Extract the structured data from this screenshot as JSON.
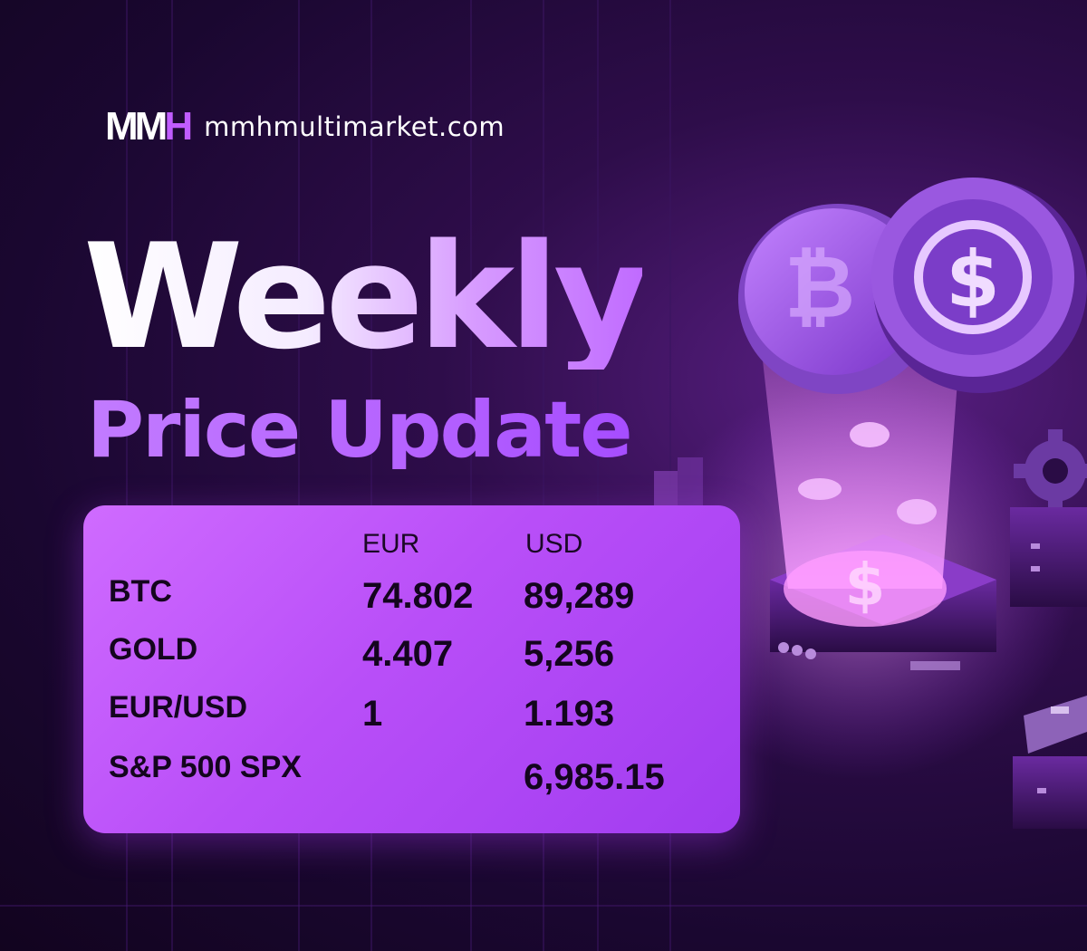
{
  "brand": {
    "logo_text_main": "MM",
    "logo_text_accent": "H",
    "domain": "mmhmultimarket.com"
  },
  "headline": {
    "title": "Weekly",
    "subtitle": "Price Update"
  },
  "table": {
    "columns": [
      "EUR",
      "USD"
    ],
    "rows": [
      {
        "label": "BTC",
        "eur": "74.802",
        "usd": "89,289"
      },
      {
        "label": "GOLD",
        "eur": "4.407",
        "usd": "5,256"
      },
      {
        "label": "EUR/USD",
        "eur": "1",
        "usd": "1.193"
      },
      {
        "label": "S&P 500 SPX",
        "eur": "",
        "usd": "6,985.15"
      }
    ]
  },
  "illustration": {
    "coin_front_icon": "dollar-coin-icon",
    "coin_back_icon": "bitcoin-coin-icon",
    "base_icon": "dollar-sign-icon",
    "gear_icon": "gear-icon",
    "card_icon": "credit-card-icon"
  },
  "colors": {
    "background": "#1a0730",
    "accent": "#c05cff",
    "card": "#b94ff8",
    "text_dark": "#14051e"
  }
}
